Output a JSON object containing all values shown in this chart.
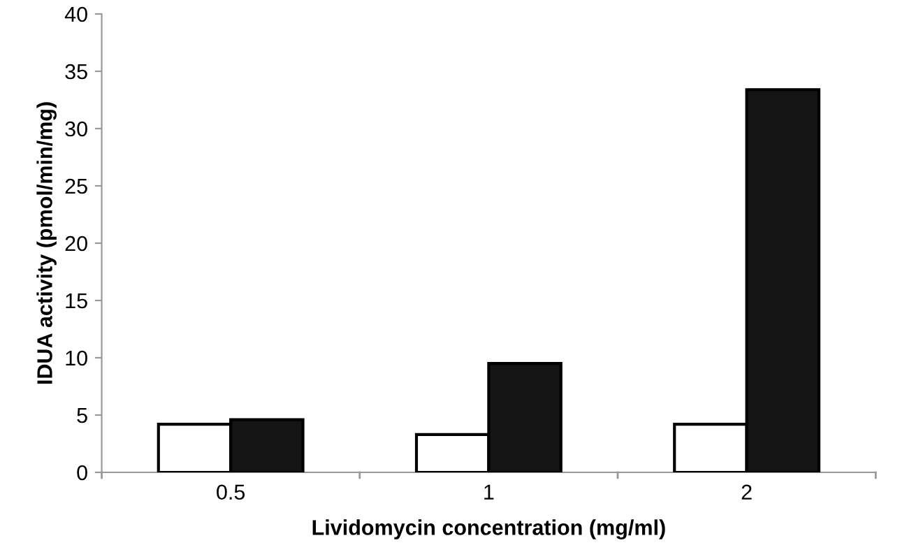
{
  "chart_data": {
    "type": "bar",
    "xlabel": "Lividomycin concentration (mg/ml)",
    "ylabel": "IDUA activity (pmol/min/mg)",
    "categories": [
      "0.5",
      "1",
      "2"
    ],
    "series": [
      {
        "color": "#ffffff",
        "values": [
          4.2,
          3.3,
          4.2
        ]
      },
      {
        "color": "#141414",
        "values": [
          4.6,
          9.5,
          33.4
        ]
      }
    ],
    "ylim": [
      0,
      40
    ],
    "yticks": [
      0,
      5,
      10,
      15,
      20,
      25,
      30,
      35,
      40
    ],
    "grid": false
  }
}
